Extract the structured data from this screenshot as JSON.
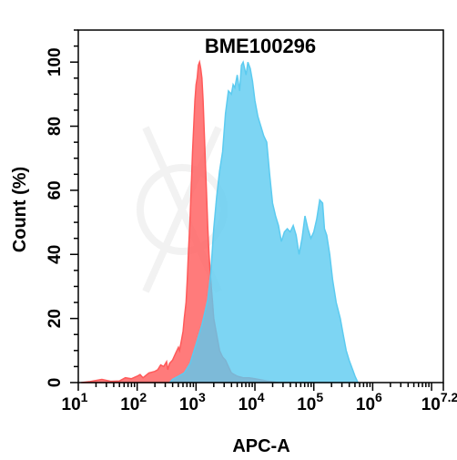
{
  "chart_data": {
    "type": "area",
    "title": "BME100296",
    "xlabel": "APC-A",
    "ylabel": "Count  (%)",
    "x_scale": "log",
    "xlim": [
      1,
      7.2
    ],
    "ylim": [
      0,
      110
    ],
    "x_ticks": [
      {
        "base": "10",
        "exp": "1"
      },
      {
        "base": "10",
        "exp": "2"
      },
      {
        "base": "10",
        "exp": "3"
      },
      {
        "base": "10",
        "exp": "4"
      },
      {
        "base": "10",
        "exp": "5"
      },
      {
        "base": "10",
        "exp": "6"
      },
      {
        "base": "10",
        "exp": "7.2"
      }
    ],
    "y_ticks": [
      "0",
      "20",
      "40",
      "60",
      "80",
      "100"
    ],
    "grid": false,
    "series": [
      {
        "color": "#ff5a5a",
        "points": [
          [
            1.05,
            0
          ],
          [
            1.2,
            0.3
          ],
          [
            1.4,
            1
          ],
          [
            1.55,
            0.4
          ],
          [
            1.7,
            0.5
          ],
          [
            1.8,
            1.5
          ],
          [
            1.9,
            1.2
          ],
          [
            2.0,
            2
          ],
          [
            2.05,
            2.5
          ],
          [
            2.1,
            1.5
          ],
          [
            2.2,
            3
          ],
          [
            2.3,
            3.5
          ],
          [
            2.35,
            4
          ],
          [
            2.4,
            5.5
          ],
          [
            2.45,
            5
          ],
          [
            2.5,
            6.5
          ],
          [
            2.52,
            4
          ],
          [
            2.55,
            6
          ],
          [
            2.6,
            7
          ],
          [
            2.65,
            9
          ],
          [
            2.7,
            11
          ],
          [
            2.72,
            10
          ],
          [
            2.75,
            13
          ],
          [
            2.78,
            16
          ],
          [
            2.8,
            20
          ],
          [
            2.83,
            25
          ],
          [
            2.85,
            32
          ],
          [
            2.87,
            40
          ],
          [
            2.9,
            52
          ],
          [
            2.92,
            62
          ],
          [
            2.94,
            72
          ],
          [
            2.96,
            80
          ],
          [
            2.98,
            88
          ],
          [
            3.0,
            93
          ],
          [
            3.02,
            95
          ],
          [
            3.04,
            99
          ],
          [
            3.06,
            100
          ],
          [
            3.08,
            98
          ],
          [
            3.1,
            95
          ],
          [
            3.12,
            88
          ],
          [
            3.14,
            78
          ],
          [
            3.16,
            68
          ],
          [
            3.18,
            58
          ],
          [
            3.2,
            48
          ],
          [
            3.22,
            40
          ],
          [
            3.25,
            32
          ],
          [
            3.28,
            25
          ],
          [
            3.3,
            20
          ],
          [
            3.35,
            15
          ],
          [
            3.4,
            10
          ],
          [
            3.45,
            8
          ],
          [
            3.5,
            7
          ],
          [
            3.55,
            5
          ],
          [
            3.6,
            3
          ],
          [
            3.7,
            2
          ],
          [
            3.8,
            1.5
          ],
          [
            3.9,
            1.5
          ],
          [
            4.0,
            1.2
          ],
          [
            4.2,
            0.5
          ],
          [
            4.4,
            0
          ]
        ]
      },
      {
        "color": "#5ccbf0",
        "points": [
          [
            2.55,
            0
          ],
          [
            2.6,
            1
          ],
          [
            2.7,
            2
          ],
          [
            2.8,
            3
          ],
          [
            2.9,
            6
          ],
          [
            2.95,
            9
          ],
          [
            3.0,
            12
          ],
          [
            3.05,
            15
          ],
          [
            3.1,
            18
          ],
          [
            3.15,
            22
          ],
          [
            3.2,
            26
          ],
          [
            3.25,
            34
          ],
          [
            3.3,
            48
          ],
          [
            3.35,
            58
          ],
          [
            3.4,
            66
          ],
          [
            3.45,
            72
          ],
          [
            3.5,
            84
          ],
          [
            3.55,
            91
          ],
          [
            3.6,
            90
          ],
          [
            3.63,
            93
          ],
          [
            3.66,
            92
          ],
          [
            3.7,
            96
          ],
          [
            3.74,
            91
          ],
          [
            3.77,
            99
          ],
          [
            3.8,
            100
          ],
          [
            3.85,
            96
          ],
          [
            3.88,
            100
          ],
          [
            3.92,
            98
          ],
          [
            3.96,
            94
          ],
          [
            4.0,
            88
          ],
          [
            4.05,
            83
          ],
          [
            4.1,
            80
          ],
          [
            4.15,
            77
          ],
          [
            4.2,
            75
          ],
          [
            4.25,
            65
          ],
          [
            4.3,
            56
          ],
          [
            4.35,
            52
          ],
          [
            4.4,
            49
          ],
          [
            4.45,
            44
          ],
          [
            4.5,
            47
          ],
          [
            4.55,
            48
          ],
          [
            4.6,
            47
          ],
          [
            4.65,
            49
          ],
          [
            4.7,
            46
          ],
          [
            4.75,
            40
          ],
          [
            4.8,
            45
          ],
          [
            4.85,
            52
          ],
          [
            4.9,
            48
          ],
          [
            4.95,
            45
          ],
          [
            5.0,
            47
          ],
          [
            5.05,
            51
          ],
          [
            5.1,
            57
          ],
          [
            5.15,
            56
          ],
          [
            5.18,
            48
          ],
          [
            5.22,
            46
          ],
          [
            5.27,
            40
          ],
          [
            5.32,
            32
          ],
          [
            5.38,
            25
          ],
          [
            5.45,
            20
          ],
          [
            5.5,
            15
          ],
          [
            5.55,
            10
          ],
          [
            5.6,
            7
          ],
          [
            5.66,
            4
          ],
          [
            5.7,
            2
          ],
          [
            5.75,
            0
          ]
        ]
      }
    ]
  }
}
